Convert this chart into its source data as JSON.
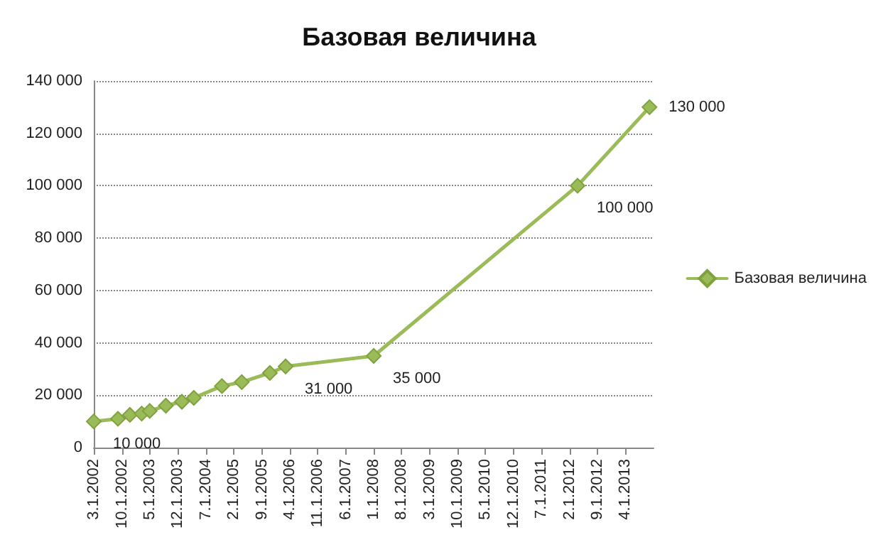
{
  "chart_data": {
    "type": "line",
    "title": "Базовая величина",
    "x": [
      "2002-03-01",
      "2002-09-01",
      "2002-12-01",
      "2003-03-01",
      "2003-05-01",
      "2003-09-01",
      "2004-01-01",
      "2004-04-01",
      "2004-11-01",
      "2005-04-01",
      "2005-11-01",
      "2006-03-01",
      "2008-01-01",
      "2012-04-01",
      "2013-10-01"
    ],
    "series": [
      {
        "name": "Базовая величина",
        "color": "#9bbb59",
        "values": [
          10000,
          11000,
          12500,
          13000,
          14000,
          16000,
          17500,
          19000,
          23500,
          25000,
          28500,
          31000,
          35000,
          100000,
          130000
        ],
        "value_labels": [
          "10 000",
          null,
          null,
          null,
          null,
          null,
          null,
          null,
          null,
          null,
          null,
          "31 000",
          "35 000",
          "100 000",
          "130 000"
        ]
      }
    ],
    "xlim": [
      "2002-03-01",
      "2013-11-01"
    ],
    "xticks": [
      {
        "value": "2002-03-01",
        "label": "3.1.2002"
      },
      {
        "value": "2002-10-01",
        "label": "10.1.2002"
      },
      {
        "value": "2003-05-01",
        "label": "5.1.2003"
      },
      {
        "value": "2003-12-01",
        "label": "12.1.2003"
      },
      {
        "value": "2004-07-01",
        "label": "7.1.2004"
      },
      {
        "value": "2005-02-01",
        "label": "2.1.2005"
      },
      {
        "value": "2005-09-01",
        "label": "9.1.2005"
      },
      {
        "value": "2006-04-01",
        "label": "4.1.2006"
      },
      {
        "value": "2006-11-01",
        "label": "11.1.2006"
      },
      {
        "value": "2007-06-01",
        "label": "6.1.2007"
      },
      {
        "value": "2008-01-01",
        "label": "1.1.2008"
      },
      {
        "value": "2008-08-01",
        "label": "8.1.2008"
      },
      {
        "value": "2009-03-01",
        "label": "3.1.2009"
      },
      {
        "value": "2009-10-01",
        "label": "10.1.2009"
      },
      {
        "value": "2010-05-01",
        "label": "5.1.2010"
      },
      {
        "value": "2010-12-01",
        "label": "12.1.2010"
      },
      {
        "value": "2011-07-01",
        "label": "7.1.2011"
      },
      {
        "value": "2012-02-01",
        "label": "2.1.2012"
      },
      {
        "value": "2012-09-01",
        "label": "9.1.2012"
      },
      {
        "value": "2013-04-01",
        "label": "4.1.2013"
      }
    ],
    "ylim": [
      0,
      140000
    ],
    "yticks": [
      {
        "value": 0,
        "label": "0"
      },
      {
        "value": 20000,
        "label": "20 000"
      },
      {
        "value": 40000,
        "label": "40 000"
      },
      {
        "value": 60000,
        "label": "60 000"
      },
      {
        "value": 80000,
        "label": "80 000"
      },
      {
        "value": 100000,
        "label": "100 000"
      },
      {
        "value": 120000,
        "label": "120 000"
      },
      {
        "value": 140000,
        "label": "140 000"
      }
    ],
    "grid": "y",
    "legend": "right",
    "marker": "diamond",
    "line_style": "solid"
  }
}
